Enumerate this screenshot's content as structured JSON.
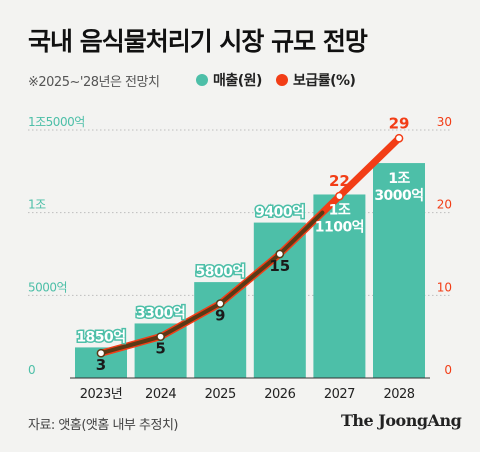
{
  "title": "국내 음식물처리기 시장 규모 전망",
  "note": "※2025~'28년은 전망치",
  "source": "자료: 앳홈(앳홈 내부 추정치)",
  "logo": "The JoongAng",
  "colors": {
    "bar": "#4dbfa8",
    "bar_label": "#ffffff",
    "penetration": "#f23d16",
    "line_inner": "#5a3a16",
    "left_axis": "#4dbfa8",
    "right_axis": "#f23d16",
    "grid": "#bdbdbd",
    "baseline": "#333333"
  },
  "chart_data": {
    "type": "bar",
    "categories": [
      "2023년",
      "2024",
      "2025",
      "2026",
      "2027",
      "2028"
    ],
    "legend": [
      "매출(원)",
      "보급률(%)"
    ],
    "series": [
      {
        "name": "매출(원)",
        "type": "bar",
        "axis": "left",
        "values": [
          1850,
          3300,
          5800,
          9400,
          11100,
          13000
        ],
        "labels": [
          "1850억",
          "3300억",
          "5800억",
          "9400억",
          "1조\n1100억",
          "1조\n3000억"
        ]
      },
      {
        "name": "보급률(%)",
        "type": "line",
        "axis": "right",
        "values": [
          3,
          5,
          9,
          15,
          22,
          29
        ],
        "labels": [
          "3",
          "5",
          "9",
          "15",
          "22",
          "29"
        ]
      }
    ],
    "left_axis": {
      "unit": "억",
      "ylim": [
        0,
        15000
      ],
      "tick_values": [
        0,
        5000,
        10000,
        15000
      ],
      "tick_labels": [
        "0",
        "5000억",
        "1조",
        "1조5000억"
      ]
    },
    "right_axis": {
      "unit": "%",
      "ylim": [
        0,
        30
      ],
      "tick_values": [
        0,
        10,
        20,
        30
      ],
      "tick_labels": [
        "0",
        "10",
        "20",
        "30"
      ]
    },
    "grid": true,
    "legend_position": "top"
  }
}
